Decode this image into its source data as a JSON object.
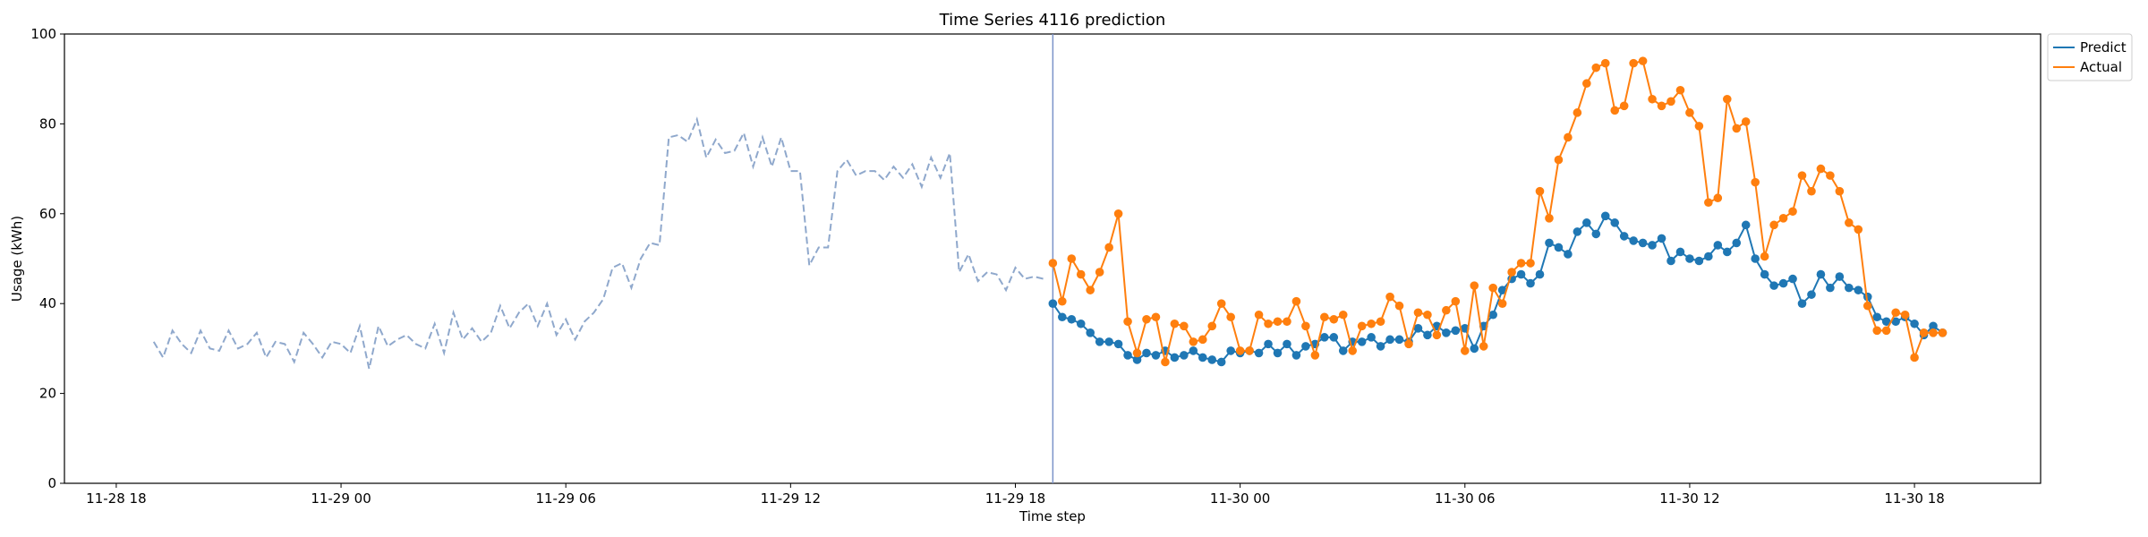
{
  "chart_data": {
    "type": "line",
    "title": "Time Series 4116 prediction",
    "xlabel": "Time step",
    "ylabel": "Usage (kWh)",
    "xlim": [
      "11-28 16:37",
      "11-30 21:22"
    ],
    "xticks": [
      {
        "value": "11-28 18:00",
        "label": "11-28 18"
      },
      {
        "value": "11-29 00:00",
        "label": "11-29 00"
      },
      {
        "value": "11-29 06:00",
        "label": "11-29 06"
      },
      {
        "value": "11-29 12:00",
        "label": "11-29 12"
      },
      {
        "value": "11-29 18:00",
        "label": "11-29 18"
      },
      {
        "value": "11-30 00:00",
        "label": "11-30 00"
      },
      {
        "value": "11-30 06:00",
        "label": "11-30 06"
      },
      {
        "value": "11-30 12:00",
        "label": "11-30 12"
      },
      {
        "value": "11-30 18:00",
        "label": "11-30 18"
      }
    ],
    "ylim": [
      0,
      100
    ],
    "yticks": [
      0,
      20,
      40,
      60,
      80,
      100
    ],
    "legend": "upper right outside",
    "x": [
      "11-29 19:00",
      "11-29 19:15",
      "11-29 19:30",
      "11-29 19:45",
      "11-29 20:00",
      "11-29 20:15",
      "11-29 20:30",
      "11-29 20:45",
      "11-29 21:00",
      "11-29 21:15",
      "11-29 21:30",
      "11-29 21:45",
      "11-29 22:00",
      "11-29 22:15",
      "11-29 22:30",
      "11-29 22:45",
      "11-29 23:00",
      "11-29 23:15",
      "11-29 23:30",
      "11-29 23:45",
      "11-30 00:00",
      "11-30 00:15",
      "11-30 00:30",
      "11-30 00:45",
      "11-30 01:00",
      "11-30 01:15",
      "11-30 01:30",
      "11-30 01:45",
      "11-30 02:00",
      "11-30 02:15",
      "11-30 02:30",
      "11-30 02:45",
      "11-30 03:00",
      "11-30 03:15",
      "11-30 03:30",
      "11-30 03:45",
      "11-30 04:00",
      "11-30 04:15",
      "11-30 04:30",
      "11-30 04:45",
      "11-30 05:00",
      "11-30 05:15",
      "11-30 05:30",
      "11-30 05:45",
      "11-30 06:00",
      "11-30 06:15",
      "11-30 06:30",
      "11-30 06:45",
      "11-30 07:00",
      "11-30 07:15",
      "11-30 07:30",
      "11-30 07:45",
      "11-30 08:00",
      "11-30 08:15",
      "11-30 08:30",
      "11-30 08:45",
      "11-30 09:00",
      "11-30 09:15",
      "11-30 09:30",
      "11-30 09:45",
      "11-30 10:00",
      "11-30 10:15",
      "11-30 10:30",
      "11-30 10:45",
      "11-30 11:00",
      "11-30 11:15",
      "11-30 11:30",
      "11-30 11:45",
      "11-30 12:00",
      "11-30 12:15",
      "11-30 12:30",
      "11-30 12:45",
      "11-30 13:00",
      "11-30 13:15",
      "11-30 13:30",
      "11-30 13:45",
      "11-30 14:00",
      "11-30 14:15",
      "11-30 14:30",
      "11-30 14:45",
      "11-30 15:00",
      "11-30 15:15",
      "11-30 15:30",
      "11-30 15:45",
      "11-30 16:00",
      "11-30 16:15",
      "11-30 16:30",
      "11-30 16:45",
      "11-30 17:00",
      "11-30 17:15",
      "11-30 17:30",
      "11-30 17:45",
      "11-30 18:00",
      "11-30 18:15",
      "11-30 18:30",
      "11-30 18:45"
    ],
    "series": [
      {
        "color": "#8fa8cc",
        "dashed": true,
        "markers": false,
        "x": [
          "11-28 19:00",
          "11-28 19:15",
          "11-28 19:30",
          "11-28 19:45",
          "11-28 20:00",
          "11-28 20:15",
          "11-28 20:30",
          "11-28 20:45",
          "11-28 21:00",
          "11-28 21:15",
          "11-28 21:30",
          "11-28 21:45",
          "11-28 22:00",
          "11-28 22:15",
          "11-28 22:30",
          "11-28 22:45",
          "11-28 23:00",
          "11-28 23:15",
          "11-28 23:30",
          "11-28 23:45",
          "11-29 00:00",
          "11-29 00:15",
          "11-29 00:30",
          "11-29 00:45",
          "11-29 01:00",
          "11-29 01:15",
          "11-29 01:30",
          "11-29 01:45",
          "11-29 02:00",
          "11-29 02:15",
          "11-29 02:30",
          "11-29 02:45",
          "11-29 03:00",
          "11-29 03:15",
          "11-29 03:30",
          "11-29 03:45",
          "11-29 04:00",
          "11-29 04:15",
          "11-29 04:30",
          "11-29 04:45",
          "11-29 05:00",
          "11-29 05:15",
          "11-29 05:30",
          "11-29 05:45",
          "11-29 06:00",
          "11-29 06:15",
          "11-29 06:30",
          "11-29 06:45",
          "11-29 07:00",
          "11-29 07:15",
          "11-29 07:30",
          "11-29 07:45",
          "11-29 08:00",
          "11-29 08:15",
          "11-29 08:30",
          "11-29 08:45",
          "11-29 09:00",
          "11-29 09:15",
          "11-29 09:30",
          "11-29 09:45",
          "11-29 10:00",
          "11-29 10:15",
          "11-29 10:30",
          "11-29 10:45",
          "11-29 11:00",
          "11-29 11:15",
          "11-29 11:30",
          "11-29 11:45",
          "11-29 12:00",
          "11-29 12:15",
          "11-29 12:30",
          "11-29 12:45",
          "11-29 13:00",
          "11-29 13:15",
          "11-29 13:30",
          "11-29 13:45",
          "11-29 14:00",
          "11-29 14:15",
          "11-29 14:30",
          "11-29 14:45",
          "11-29 15:00",
          "11-29 15:15",
          "11-29 15:30",
          "11-29 15:45",
          "11-29 16:00",
          "11-29 16:15",
          "11-29 16:30",
          "11-29 16:45",
          "11-29 17:00",
          "11-29 17:15",
          "11-29 17:30",
          "11-29 17:45",
          "11-29 18:00",
          "11-29 18:15",
          "11-29 18:30",
          "11-29 18:45"
        ],
        "values": [
          31.5,
          28,
          34,
          31,
          29,
          34,
          30,
          29.5,
          34,
          30,
          31,
          33.5,
          28,
          31.5,
          31,
          27,
          33.5,
          31,
          28,
          31.5,
          31,
          29,
          35,
          25.5,
          35,
          30.5,
          32,
          33,
          31,
          30,
          35.5,
          29,
          38,
          32,
          34.5,
          31.5,
          33.5,
          39.5,
          34.5,
          38,
          40,
          35,
          40,
          33,
          36.5,
          32,
          36,
          38,
          41,
          48,
          49,
          43.5,
          50,
          53.5,
          53,
          77,
          77.5,
          76,
          81,
          72.5,
          76.5,
          73.5,
          74,
          78,
          70.5,
          77,
          70.5,
          77,
          69.5,
          69.5,
          48.5,
          52.5,
          52.5,
          69.5,
          72,
          68.5,
          69.5,
          69.5,
          67.5,
          70.5,
          68,
          71,
          66,
          72.5,
          68,
          73.5,
          47,
          51,
          45,
          47,
          46.5,
          43,
          48,
          45.5,
          46,
          45.5
        ]
      },
      {
        "name": "Predict",
        "color": "#1f77b4",
        "markers": true,
        "values": [
          40,
          37,
          36.5,
          35.5,
          33.5,
          31.5,
          31.5,
          31,
          28.5,
          27.5,
          29,
          28.5,
          29.5,
          28,
          28.5,
          29.5,
          28,
          27.5,
          27,
          29.5,
          29,
          29.5,
          29,
          31,
          29,
          31,
          28.5,
          30.5,
          31,
          32.5,
          32.5,
          29.5,
          31.5,
          31.5,
          32.5,
          30.5,
          32,
          32,
          31.5,
          34.5,
          33,
          35,
          33.5,
          34,
          34.5,
          30,
          35,
          37.5,
          43,
          45.5,
          46.5,
          44.5,
          46.5,
          53.5,
          52.5,
          51,
          56,
          58,
          55.5,
          59.5,
          58,
          55,
          54,
          53.5,
          53,
          54.5,
          49.5,
          51.5,
          50,
          49.5,
          50.5,
          53,
          51.5,
          53.5,
          57.5,
          50,
          46.5,
          44,
          44.5,
          45.5,
          40,
          42,
          46.5,
          43.5,
          46,
          43.5,
          43,
          41.5,
          37,
          36,
          36,
          37,
          35.5,
          33,
          35,
          33.5
        ]
      },
      {
        "name": "Actual",
        "color": "#ff7f0e",
        "markers": true,
        "values": [
          49,
          40.5,
          50,
          46.5,
          43,
          47,
          52.5,
          60,
          36,
          29,
          36.5,
          37,
          27,
          35.5,
          35,
          31.5,
          32,
          35,
          40,
          37,
          29.5,
          29.5,
          37.5,
          35.5,
          36,
          36,
          40.5,
          35,
          28.5,
          37,
          36.5,
          37.5,
          29.5,
          35,
          35.5,
          36,
          41.5,
          39.5,
          31,
          38,
          37.5,
          33,
          38.5,
          40.5,
          29.5,
          44,
          30.5,
          43.5,
          40,
          47,
          49,
          49,
          65,
          59,
          72,
          77,
          82.5,
          89,
          92.5,
          93.5,
          83,
          84,
          93.5,
          94,
          85.5,
          84,
          85,
          87.5,
          82.5,
          79.5,
          62.5,
          63.5,
          85.5,
          79,
          80.5,
          67,
          50.5,
          57.5,
          59,
          60.5,
          68.5,
          65,
          70,
          68.5,
          65,
          58,
          56.5,
          39.5,
          34,
          34,
          38,
          37.5,
          28,
          33.5,
          33.5,
          33.5
        ]
      }
    ]
  }
}
